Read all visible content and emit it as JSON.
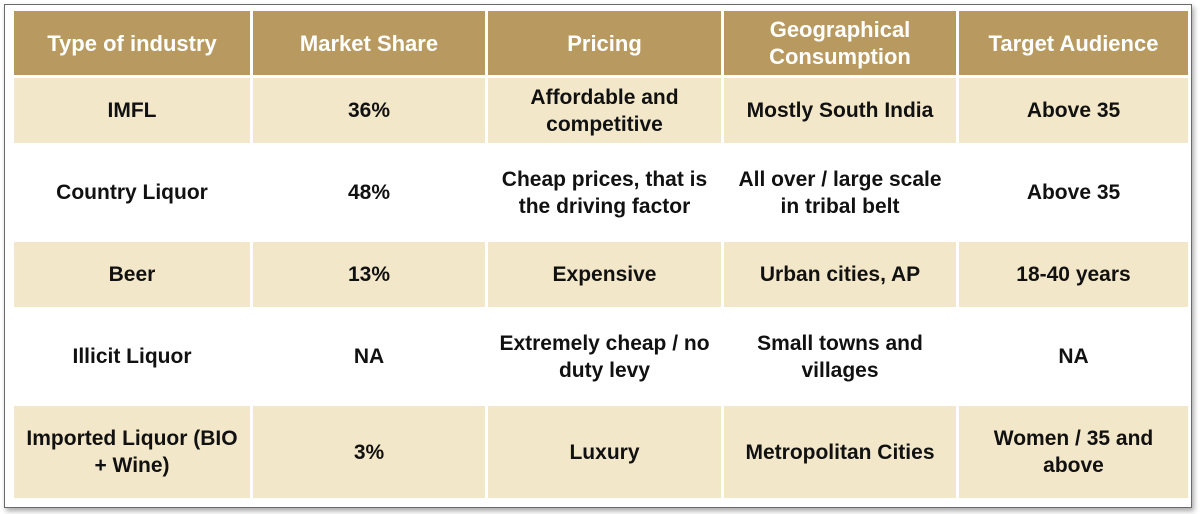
{
  "table": {
    "headers": [
      "Type of industry",
      "Market Share",
      "Pricing",
      "Geographical Consumption",
      "Target Audience"
    ],
    "rows": [
      [
        "IMFL",
        "36%",
        "Affordable and competitive",
        "Mostly South India",
        "Above 35"
      ],
      [
        "Country Liquor",
        "48%",
        "Cheap prices, that is the driving factor",
        "All over / large scale in tribal belt",
        "Above 35"
      ],
      [
        "Beer",
        "13%",
        "Expensive",
        "Urban cities, AP",
        "18-40 years"
      ],
      [
        "Illicit Liquor",
        "NA",
        "Extremely cheap / no duty levy",
        "Small towns and villages",
        "NA"
      ],
      [
        "Imported Liquor (BIO + Wine)",
        "3%",
        "Luxury",
        "Metropolitan Cities",
        "Women / 35 and above"
      ]
    ]
  },
  "colors": {
    "header_bg": "#b89a60",
    "header_text": "#ffffff",
    "band_bg": "#f3e7c9",
    "plain_bg": "#ffffff"
  }
}
